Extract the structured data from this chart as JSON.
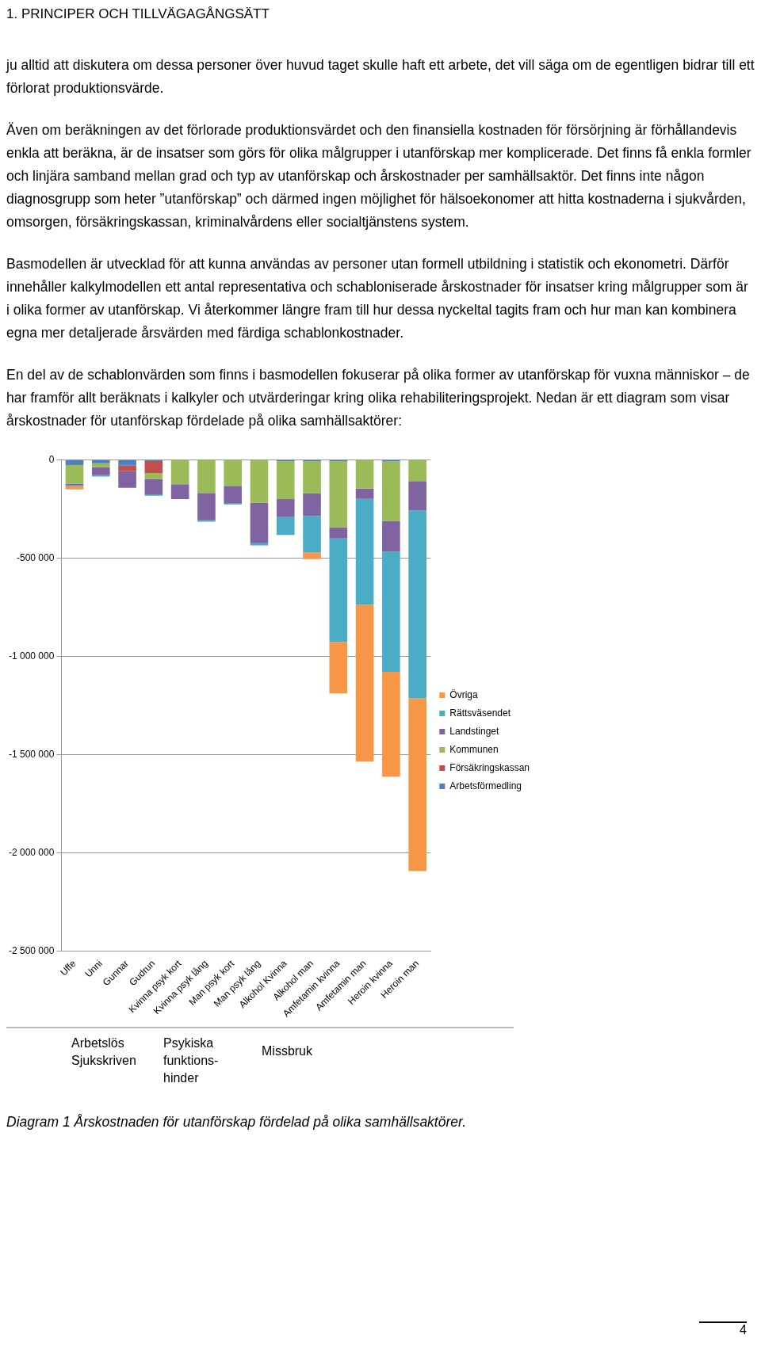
{
  "chart_data": {
    "type": "bar",
    "stacked": true,
    "categories": [
      "Uffe",
      "Unni",
      "Gunnar",
      "Gudrun",
      "Kvinna psyk kort",
      "Kvinna psyk lång",
      "Man psyk kort",
      "Man psyk lång",
      "Alkohol Kvinna",
      "Alkohol man",
      "Amfetamin kvinna",
      "Amfetamin man",
      "Heroin kvinna",
      "Heroin man"
    ],
    "series": [
      {
        "name": "Arbetsförmedling",
        "color": "#4f81bd",
        "values": [
          -27000,
          -18000,
          -30000,
          -7000,
          0,
          0,
          0,
          0,
          -7000,
          -7000,
          -7000,
          0,
          -9000,
          0
        ]
      },
      {
        "name": "Försäkringskassan",
        "color": "#c0504d",
        "values": [
          0,
          0,
          -29000,
          -61000,
          0,
          0,
          0,
          0,
          0,
          0,
          0,
          0,
          0,
          0
        ]
      },
      {
        "name": "Kommunen",
        "color": "#9bbb59",
        "values": [
          -95000,
          -20000,
          0,
          -30000,
          -125000,
          -170000,
          -133000,
          -220000,
          -194000,
          -166000,
          -337000,
          -147000,
          -303000,
          -109000
        ]
      },
      {
        "name": "Landstinget",
        "color": "#8064a2",
        "values": [
          -9000,
          -41000,
          -84000,
          -79000,
          -76000,
          -139000,
          -88000,
          -205000,
          -91000,
          -113000,
          -57000,
          -53000,
          -156000,
          -149000
        ]
      },
      {
        "name": "Rättsväsendet",
        "color": "#4bacc6",
        "values": [
          -4000,
          -7000,
          0,
          -7000,
          0,
          -7000,
          -7000,
          -12000,
          -91000,
          -186000,
          -526000,
          -538000,
          -612000,
          -957000
        ]
      },
      {
        "name": "Övriga",
        "color": "#f79646",
        "values": [
          -16000,
          0,
          0,
          0,
          0,
          0,
          0,
          0,
          0,
          -34000,
          -262000,
          -798000,
          -534000,
          -878000
        ]
      }
    ],
    "ylim": [
      -2500000,
      0
    ],
    "yticks": [
      {
        "value": -2500000,
        "label": "-2 500 000"
      },
      {
        "value": -2000000,
        "label": "-2 000 000"
      },
      {
        "value": -1500000,
        "label": "-1 500 000"
      },
      {
        "value": -1000000,
        "label": "-1 000 000"
      },
      {
        "value": -500000,
        "label": "-500 000"
      },
      0
    ],
    "grid": "y",
    "legend": "right",
    "annotations": [
      "1. PRINCIPER OCH TILLVÄGAGÅNGSÄTT",
      "ju alltid att diskutera om dessa personer över huvud taget skulle haft ett arbete, det vill säga om de egentligen bidrar till ett förlorat produktionsvärde.",
      "Även om beräkningen av det förlorade produktionsvärdet och den finansiella kostnaden för försörjning är förhållandevis enkla att beräkna, är de insatser som görs för olika målgrupper i utanförskap mer komplicerade. Det finns få enkla formler och linjära samband mellan grad och typ av utanförskap och årskostnader per samhällsaktör. Det finns inte någon diagnosgrupp som heter ”utanförskap” och därmed ingen möjlighet för hälsoekonomer att hitta kostnaderna i sjukvården, omsorgen, försäkringskassan, kriminalvårdens eller socialtjänstens system.",
      "Basmodellen är utvecklad för att kunna användas av personer utan formell utbildning i statistik och ekonometri. Därför innehåller kalkylmodellen ett antal representativa och schabloniserade årskostnader för insatser kring målgrupper som är i olika former av utanförskap. Vi återkommer längre fram till hur dessa nyckeltal tagits fram och hur man kan kombinera egna mer detaljerade årsvärden med färdiga schablonkostnader.",
      "En del av de schablonvärden som finns i basmodellen fokuserar på olika former av utanförskap för vuxna människor – de har framför allt beräknats i kalkyler och utvärderingar kring olika rehabiliteringsprojekt. Nedan är ett diagram som visar årskostnader för utanförskap fördelade på olika samhällsaktörer:",
      "Arbetslös Sjukskriven",
      "Psykiska funktions-hinder",
      "Missbruk",
      "Diagram 1 Årskostnaden för utanförskap fördelad på olika samhällsaktörer.",
      "4"
    ]
  }
}
